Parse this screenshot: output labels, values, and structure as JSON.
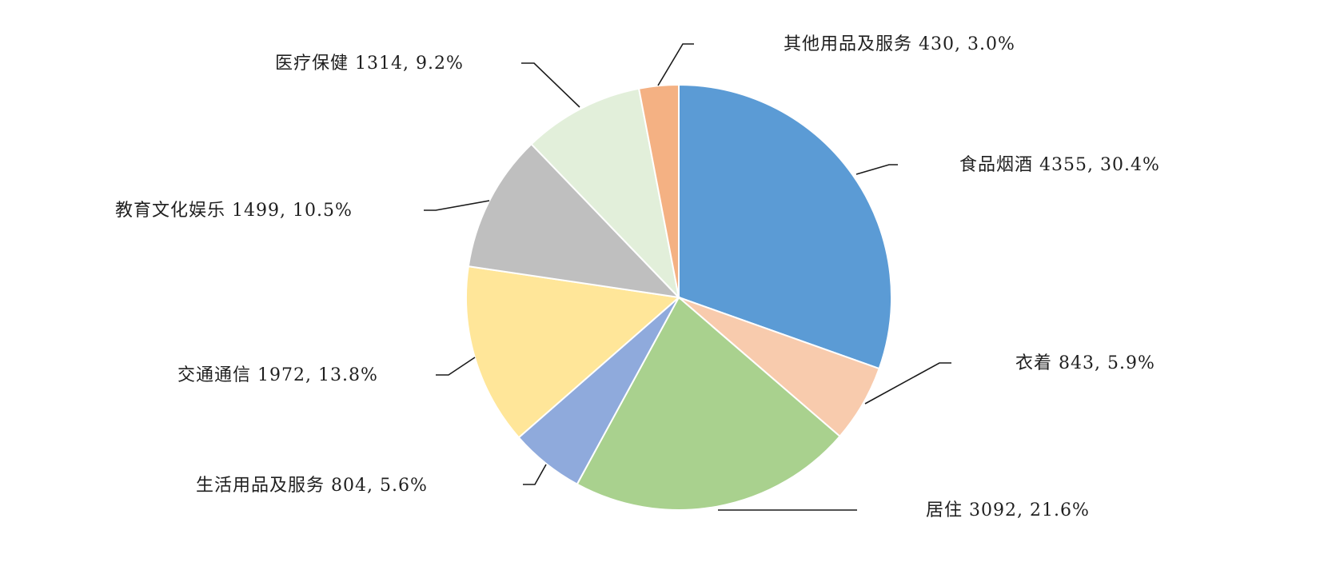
{
  "chart_data": {
    "type": "pie",
    "slices": [
      {
        "name": "食品烟酒",
        "value": 4355,
        "percent": "30.4%",
        "color": "#5B9BD5"
      },
      {
        "name": "衣着",
        "value": 843,
        "percent": "5.9%",
        "color": "#F8CBAD"
      },
      {
        "name": "居住",
        "value": 3092,
        "percent": "21.6%",
        "color": "#A9D18E"
      },
      {
        "name": "生活用品及服务",
        "value": 804,
        "percent": "5.6%",
        "color": "#8FAADC"
      },
      {
        "name": "交通通信",
        "value": 1972,
        "percent": "13.8%",
        "color": "#FFE699"
      },
      {
        "name": "教育文化娱乐",
        "value": 1499,
        "percent": "10.5%",
        "color": "#BFBFBF"
      },
      {
        "name": "医疗保健",
        "value": 1314,
        "percent": "9.2%",
        "color": "#E2EFDA"
      },
      {
        "name": "其他用品及服务",
        "value": 430,
        "percent": "3.0%",
        "color": "#F4B183"
      }
    ],
    "labels": [
      "食品烟酒 4355, 30.4%",
      "衣着 843, 5.9%",
      "居住 3092, 21.6%",
      "生活用品及服务 804, 5.6%",
      "交通通信 1972, 13.8%",
      "教育文化娱乐 1499, 10.5%",
      "医疗保健 1314, 9.2%",
      "其他用品及服务 430, 3.0%"
    ]
  }
}
